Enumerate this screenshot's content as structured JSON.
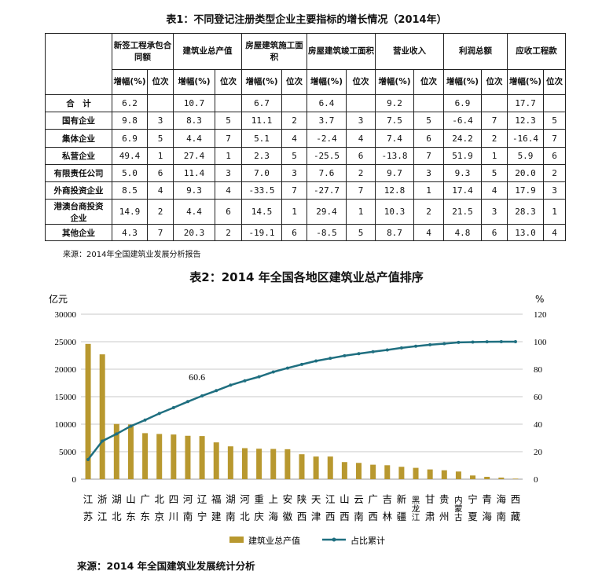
{
  "table1": {
    "title": "表1：不同登记注册类型企业主要指标的增长情况（2014年）",
    "groups": [
      "新签工程承包合同额",
      "建筑业总产值",
      "房屋建筑施工面积",
      "房屋建筑竣工面积",
      "营业收入",
      "利润总额",
      "应收工程款"
    ],
    "sub_growth": "增幅(%)",
    "sub_rank": "位次",
    "rows": [
      {
        "label": "合　计",
        "values": [
          "6.2",
          "",
          "10.7",
          "",
          "6.7",
          "",
          "6.4",
          "",
          "9.2",
          "",
          "6.9",
          "",
          "17.7",
          ""
        ]
      },
      {
        "label": "国有企业",
        "values": [
          "9.8",
          "3",
          "8.3",
          "5",
          "11.1",
          "2",
          "3.7",
          "3",
          "7.5",
          "5",
          "-6.4",
          "7",
          "12.3",
          "5"
        ]
      },
      {
        "label": "集体企业",
        "values": [
          "6.9",
          "5",
          "4.4",
          "7",
          "5.1",
          "4",
          "-2.4",
          "4",
          "7.4",
          "6",
          "24.2",
          "2",
          "-16.4",
          "7"
        ]
      },
      {
        "label": "私营企业",
        "values": [
          "49.4",
          "1",
          "27.4",
          "1",
          "2.3",
          "5",
          "-25.5",
          "6",
          "-13.8",
          "7",
          "51.9",
          "1",
          "5.9",
          "6"
        ]
      },
      {
        "label": "有限责任公司",
        "values": [
          "5.0",
          "6",
          "11.4",
          "3",
          "7.0",
          "3",
          "7.6",
          "2",
          "9.7",
          "3",
          "9.3",
          "5",
          "20.0",
          "2"
        ]
      },
      {
        "label": "外商投资企业",
        "values": [
          "8.5",
          "4",
          "9.3",
          "4",
          "-33.5",
          "7",
          "-27.7",
          "7",
          "12.8",
          "1",
          "17.4",
          "4",
          "17.9",
          "3"
        ]
      },
      {
        "label": "港澳台商投资企业",
        "values": [
          "14.9",
          "2",
          "4.4",
          "6",
          "14.5",
          "1",
          "29.4",
          "1",
          "10.3",
          "2",
          "21.5",
          "3",
          "28.3",
          "1"
        ]
      },
      {
        "label": "其他企业",
        "values": [
          "4.3",
          "7",
          "20.3",
          "2",
          "-19.1",
          "6",
          "-8.5",
          "5",
          "8.7",
          "4",
          "4.8",
          "6",
          "13.0",
          "4"
        ]
      }
    ],
    "source": "来源：2014年全国建筑业发展分析报告"
  },
  "chart_title": "表2：2014 年全国各地区建筑业总产值排序",
  "chart_data": {
    "type": "bar+line",
    "categories": [
      "江苏",
      "浙江",
      "湖北",
      "山东",
      "广东",
      "北京",
      "四川",
      "河南",
      "辽宁",
      "福建",
      "湖南",
      "河北",
      "重庆",
      "上海",
      "安徽",
      "陕西",
      "天津",
      "江西",
      "山西",
      "云南",
      "广西",
      "吉林",
      "新疆",
      "黑龙江",
      "甘肃",
      "贵州",
      "内蒙古",
      "宁夏",
      "青海",
      "海南",
      "西藏"
    ],
    "series": [
      {
        "name": "建筑业总产值",
        "type": "bar",
        "axis": "left",
        "color": "#b8982f",
        "values": [
          24600,
          22700,
          10040,
          9940,
          8370,
          8220,
          8120,
          7890,
          7840,
          6690,
          5970,
          5640,
          5540,
          5500,
          5450,
          4540,
          4110,
          4110,
          3110,
          2960,
          2630,
          2530,
          2250,
          2060,
          1770,
          1620,
          1390,
          670,
          430,
          290,
          100
        ]
      },
      {
        "name": "占比累计",
        "type": "line",
        "axis": "right",
        "color": "#1f6f80",
        "values": [
          14.3,
          27.7,
          32.9,
          38.6,
          43.0,
          47.8,
          52.0,
          56.4,
          60.6,
          64.4,
          68.4,
          71.6,
          74.5,
          78.0,
          80.8,
          83.5,
          86.0,
          87.9,
          89.8,
          91.3,
          92.7,
          94.0,
          95.5,
          96.7,
          97.8,
          98.6,
          99.5,
          99.7,
          99.9,
          100,
          100
        ]
      }
    ],
    "annotation": "60.6",
    "y_left": {
      "label": "亿元",
      "range": [
        0,
        30000
      ],
      "ticks": [
        0,
        5000,
        10000,
        15000,
        20000,
        25000,
        30000
      ]
    },
    "y_right": {
      "label": "%",
      "range": [
        0,
        120
      ],
      "ticks": [
        0,
        20,
        40,
        60,
        80,
        100,
        120
      ]
    },
    "grid": true,
    "legend": "bottom"
  },
  "chart_source": "来源：2014 年全国建筑业发展统计分析"
}
